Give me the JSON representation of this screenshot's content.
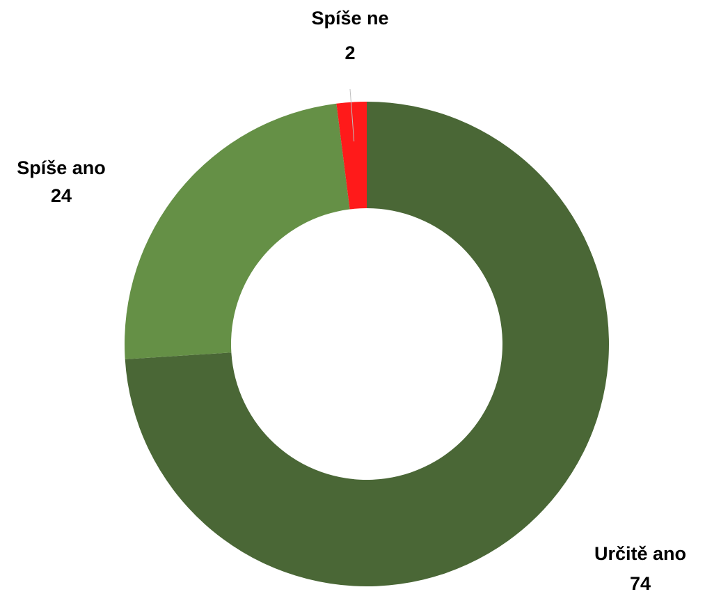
{
  "chart_data": {
    "type": "donut",
    "categories": [
      "Určitě ano",
      "Spíše ano",
      "Spíše ne"
    ],
    "values": [
      74,
      24,
      2
    ],
    "colors": [
      "#4a6736",
      "#659046",
      "#ff1a1a"
    ]
  }
}
